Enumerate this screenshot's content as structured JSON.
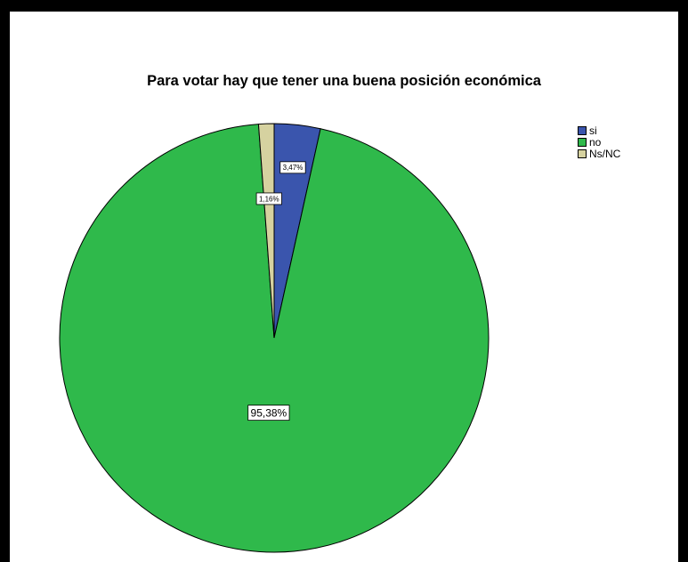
{
  "chart_data": {
    "type": "pie",
    "title": "Para votar hay que tener una buena posición económica",
    "slices": [
      {
        "name": "si",
        "value": 3.47,
        "label": "3,47%",
        "color": "#3a55ad"
      },
      {
        "name": "no",
        "value": 95.38,
        "label": "95,38%",
        "color": "#2fb94b"
      },
      {
        "name": "Ns/NC",
        "value": 1.16,
        "label": "1,16%",
        "color": "#d6d2a0"
      }
    ],
    "legend_position": "top-right"
  }
}
